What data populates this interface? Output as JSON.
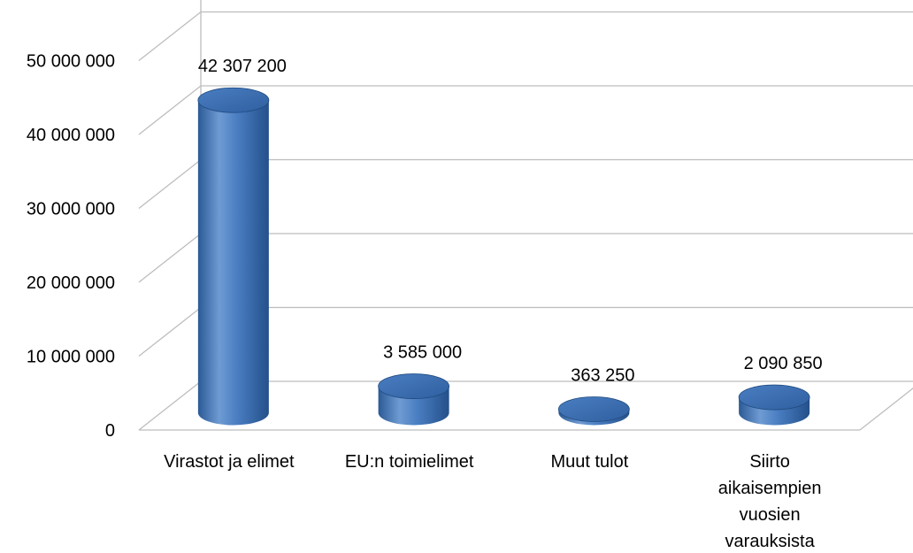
{
  "chart_data": {
    "type": "bar",
    "style": "3d-cylinder",
    "categories": [
      "Virastot ja elimet",
      "EU:n toimielimet",
      "Muut tulot",
      "Siirto aikaisempien vuosien varauksista"
    ],
    "category_lines": [
      [
        "Virastot ja elimet"
      ],
      [
        "EU:n toimielimet"
      ],
      [
        "Muut tulot"
      ],
      [
        "Siirto",
        "aikaisempien",
        "vuosien",
        "varauksista"
      ]
    ],
    "values": [
      42307200,
      3585000,
      363250,
      2090850
    ],
    "data_labels": [
      "42 307 200",
      "3 585 000",
      "363 250",
      "2 090 850"
    ],
    "yticks": [
      0,
      10000000,
      20000000,
      30000000,
      40000000,
      50000000
    ],
    "ytick_labels": [
      "0",
      "10 000 000",
      "20 000 000",
      "30 000 000",
      "40 000 000",
      "50 000 000"
    ],
    "ylim": [
      0,
      60000000
    ],
    "grid": true,
    "legend": "none",
    "colors": {
      "bar_side_light": "#7aa3d6",
      "bar_side_mid": "#4a7ec2",
      "bar_side_dark": "#2b5a96",
      "bar_top": "#3f6fb0",
      "bar_top_edge": "#1f4a80",
      "grid": "#bdbdbd",
      "text": "#000000"
    }
  }
}
